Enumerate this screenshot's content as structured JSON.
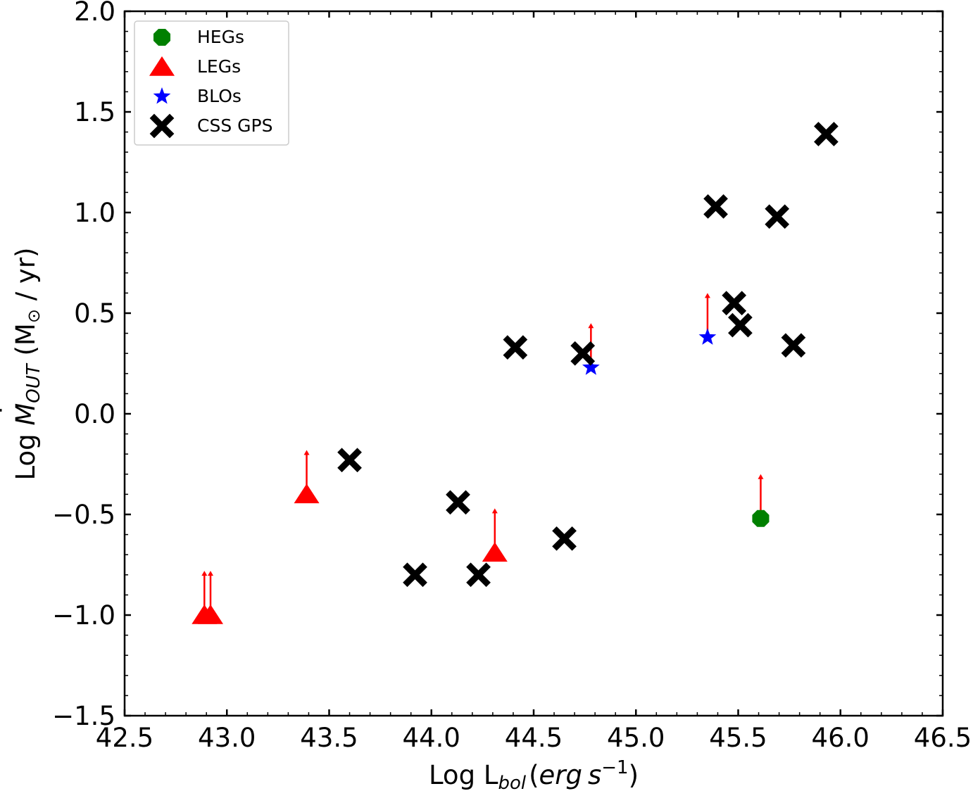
{
  "chart_data": {
    "type": "scatter",
    "xlabel": {
      "prefix": "Log L",
      "sub": "bol",
      "paren_open": "(",
      "erg": "erg",
      "s": "s",
      "sup": "−1",
      "paren_close": ")"
    },
    "ylabel": {
      "prefix": "Log ",
      "M": "M",
      "mdot": "˙",
      "sub": "OUT",
      "paren_open": " (M",
      "sun": "⊙",
      "tail": " / yr)"
    },
    "xlim": [
      42.5,
      46.5
    ],
    "ylim": [
      -1.5,
      2.0
    ],
    "x_ticks": [
      "42.5",
      "43.0",
      "43.5",
      "44.0",
      "44.5",
      "45.0",
      "45.5",
      "46.0",
      "46.5"
    ],
    "y_ticks": [
      "−1.5",
      "−1.0",
      "−0.5",
      "0.0",
      "0.5",
      "1.0",
      "1.5",
      "2.0"
    ],
    "legend": {
      "position": "upper-left",
      "entries": [
        "HEGs",
        "LEGs",
        "BLOs",
        "CSS GPS"
      ]
    },
    "colors": {
      "HEGs": "#008000",
      "LEGs": "#ff0000",
      "BLOs": "#0000ff",
      "CSS GPS": "#000000",
      "arrow": "#ff0000"
    },
    "series": [
      {
        "name": "HEGs",
        "marker": "octagon",
        "lower_limit": true,
        "points": [
          {
            "x": 45.61,
            "y": -0.52
          }
        ]
      },
      {
        "name": "LEGs",
        "marker": "triangle",
        "lower_limit": true,
        "points": [
          {
            "x": 42.89,
            "y": -1.0
          },
          {
            "x": 42.92,
            "y": -1.0
          },
          {
            "x": 43.39,
            "y": -0.4
          },
          {
            "x": 44.31,
            "y": -0.69
          }
        ]
      },
      {
        "name": "BLOs",
        "marker": "star",
        "lower_limit": true,
        "points": [
          {
            "x": 44.78,
            "y": 0.23
          },
          {
            "x": 45.35,
            "y": 0.38
          }
        ]
      },
      {
        "name": "CSS GPS",
        "marker": "x",
        "lower_limit": false,
        "points": [
          {
            "x": 43.6,
            "y": -0.23
          },
          {
            "x": 43.92,
            "y": -0.8
          },
          {
            "x": 44.13,
            "y": -0.44
          },
          {
            "x": 44.23,
            "y": -0.8
          },
          {
            "x": 44.41,
            "y": 0.33
          },
          {
            "x": 44.65,
            "y": -0.62
          },
          {
            "x": 44.74,
            "y": 0.3
          },
          {
            "x": 45.39,
            "y": 1.03
          },
          {
            "x": 45.48,
            "y": 0.55
          },
          {
            "x": 45.51,
            "y": 0.44
          },
          {
            "x": 45.69,
            "y": 0.98
          },
          {
            "x": 45.77,
            "y": 0.34
          },
          {
            "x": 45.93,
            "y": 1.39
          }
        ]
      }
    ],
    "arrow_length_dex": 0.22
  }
}
